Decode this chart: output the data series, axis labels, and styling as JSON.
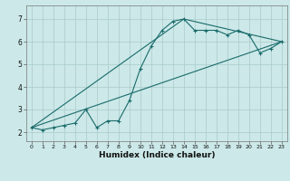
{
  "xlabel": "Humidex (Indice chaleur)",
  "bg_color": "#cce8e8",
  "grid_color": "#aacaca",
  "line_color": "#1a6b6b",
  "xlim": [
    -0.5,
    23.5
  ],
  "ylim": [
    1.6,
    7.6
  ],
  "xticks": [
    0,
    1,
    2,
    3,
    4,
    5,
    6,
    7,
    8,
    9,
    10,
    11,
    12,
    13,
    14,
    15,
    16,
    17,
    18,
    19,
    20,
    21,
    22,
    23
  ],
  "yticks": [
    2,
    3,
    4,
    5,
    6,
    7
  ],
  "series1_x": [
    0,
    1,
    2,
    3,
    4,
    5,
    6,
    7,
    8,
    9,
    10,
    11,
    12,
    13,
    14,
    15,
    16,
    17,
    18,
    19,
    20,
    21,
    22,
    23
  ],
  "series1_y": [
    2.2,
    2.1,
    2.2,
    2.3,
    2.4,
    3.0,
    2.2,
    2.5,
    2.5,
    3.4,
    4.8,
    5.8,
    6.5,
    6.9,
    7.0,
    6.5,
    6.5,
    6.5,
    6.3,
    6.5,
    6.3,
    5.5,
    5.7,
    6.0
  ],
  "series2_x": [
    0,
    14,
    23
  ],
  "series2_y": [
    2.2,
    7.0,
    6.0
  ],
  "series3_x": [
    0,
    23
  ],
  "series3_y": [
    2.2,
    6.0
  ]
}
